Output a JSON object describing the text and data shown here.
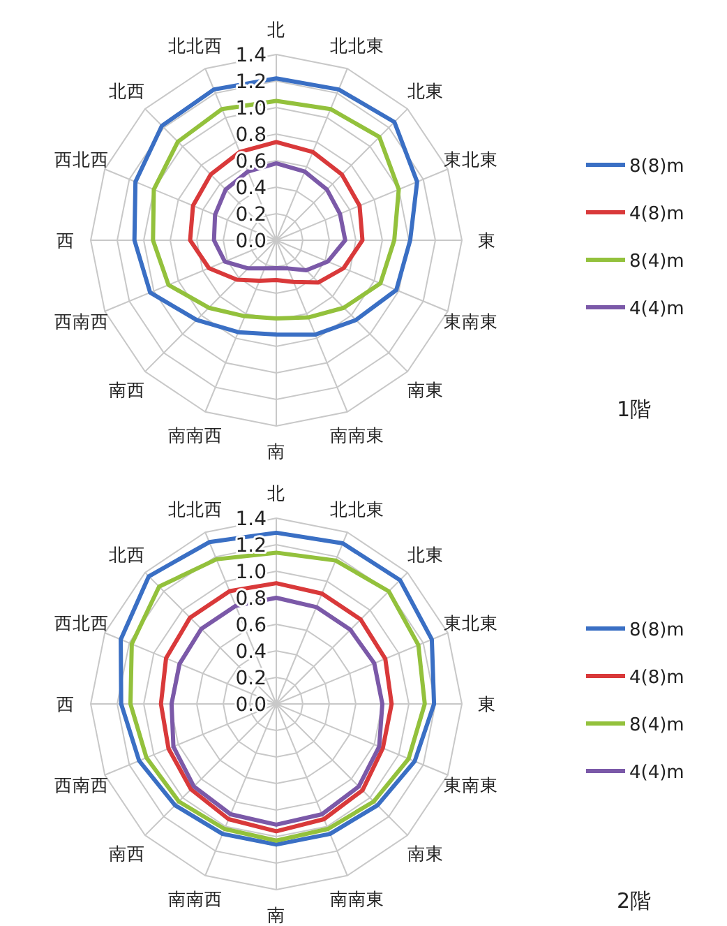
{
  "chart_data": [
    {
      "type": "radar",
      "categories": [
        "北",
        "北北東",
        "北東",
        "東北東",
        "東",
        "東南東",
        "南東",
        "南南東",
        "南",
        "南南西",
        "南西",
        "西南西",
        "西",
        "西北西",
        "北西",
        "北北西"
      ],
      "ylim": [
        0,
        1.4
      ],
      "yticks": [
        {
          "value": 0,
          "label": "0.0"
        },
        {
          "value": 0.2,
          "label": "0.2"
        },
        {
          "value": 0.4,
          "label": "0.4"
        },
        {
          "value": 0.6,
          "label": "0.6"
        },
        {
          "value": 0.8,
          "label": "0.8"
        },
        {
          "value": 1.0,
          "label": "1.0"
        },
        {
          "value": 1.2,
          "label": "1.2"
        },
        {
          "value": 1.4,
          "label": "1.4"
        }
      ],
      "grid": true,
      "legend": "right",
      "annotations": [
        "1階"
      ],
      "series": [
        {
          "name": "8(8)m",
          "color": "#3a6fc4",
          "values": [
            1.22,
            1.23,
            1.26,
            1.15,
            1.01,
            0.98,
            0.85,
            0.77,
            0.71,
            0.75,
            0.85,
            1.03,
            1.07,
            1.15,
            1.22,
            1.23
          ]
        },
        {
          "name": "4(8)m",
          "color": "#d9393a",
          "values": [
            0.74,
            0.72,
            0.7,
            0.68,
            0.65,
            0.55,
            0.45,
            0.34,
            0.3,
            0.33,
            0.42,
            0.55,
            0.65,
            0.68,
            0.7,
            0.72
          ]
        },
        {
          "name": "8(4)m",
          "color": "#93c13c",
          "values": [
            1.05,
            1.07,
            1.1,
            1.0,
            0.89,
            0.85,
            0.72,
            0.63,
            0.59,
            0.62,
            0.72,
            0.88,
            0.93,
            1.0,
            1.05,
            1.07
          ]
        },
        {
          "name": "4(4)m",
          "color": "#7b59a8",
          "values": [
            0.58,
            0.56,
            0.54,
            0.52,
            0.52,
            0.42,
            0.32,
            0.23,
            0.21,
            0.23,
            0.3,
            0.42,
            0.47,
            0.5,
            0.54,
            0.56
          ]
        }
      ]
    },
    {
      "type": "radar",
      "categories": [
        "北",
        "北北東",
        "北東",
        "東北東",
        "東",
        "東南東",
        "南東",
        "南南東",
        "南",
        "南南西",
        "南西",
        "西南西",
        "西",
        "西北西",
        "北西",
        "北北西"
      ],
      "ylim": [
        0,
        1.4
      ],
      "yticks": [
        {
          "value": 0,
          "label": "0.0"
        },
        {
          "value": 0.2,
          "label": "0.2"
        },
        {
          "value": 0.4,
          "label": "0.4"
        },
        {
          "value": 0.6,
          "label": "0.6"
        },
        {
          "value": 0.8,
          "label": "0.8"
        },
        {
          "value": 1.0,
          "label": "1.0"
        },
        {
          "value": 1.2,
          "label": "1.2"
        },
        {
          "value": 1.4,
          "label": "1.4"
        }
      ],
      "grid": true,
      "legend": "right",
      "annotations": [
        "2階"
      ],
      "series": [
        {
          "name": "8(8)m",
          "color": "#3a6fc4",
          "values": [
            1.29,
            1.31,
            1.32,
            1.27,
            1.19,
            1.13,
            1.08,
            1.06,
            1.06,
            1.06,
            1.08,
            1.12,
            1.17,
            1.27,
            1.36,
            1.32
          ]
        },
        {
          "name": "4(8)m",
          "color": "#d9393a",
          "values": [
            0.91,
            0.9,
            0.9,
            0.89,
            0.87,
            0.87,
            0.92,
            0.94,
            0.96,
            0.94,
            0.91,
            0.88,
            0.87,
            0.9,
            0.92,
            0.92
          ]
        },
        {
          "name": "8(4)m",
          "color": "#93c13c",
          "values": [
            1.14,
            1.17,
            1.2,
            1.16,
            1.12,
            1.08,
            1.04,
            1.02,
            1.03,
            1.02,
            1.04,
            1.06,
            1.1,
            1.18,
            1.25,
            1.18
          ]
        },
        {
          "name": "4(4)m",
          "color": "#7b59a8",
          "values": [
            0.8,
            0.79,
            0.79,
            0.8,
            0.8,
            0.84,
            0.88,
            0.9,
            0.91,
            0.9,
            0.88,
            0.84,
            0.79,
            0.79,
            0.8,
            0.8
          ]
        }
      ]
    }
  ]
}
